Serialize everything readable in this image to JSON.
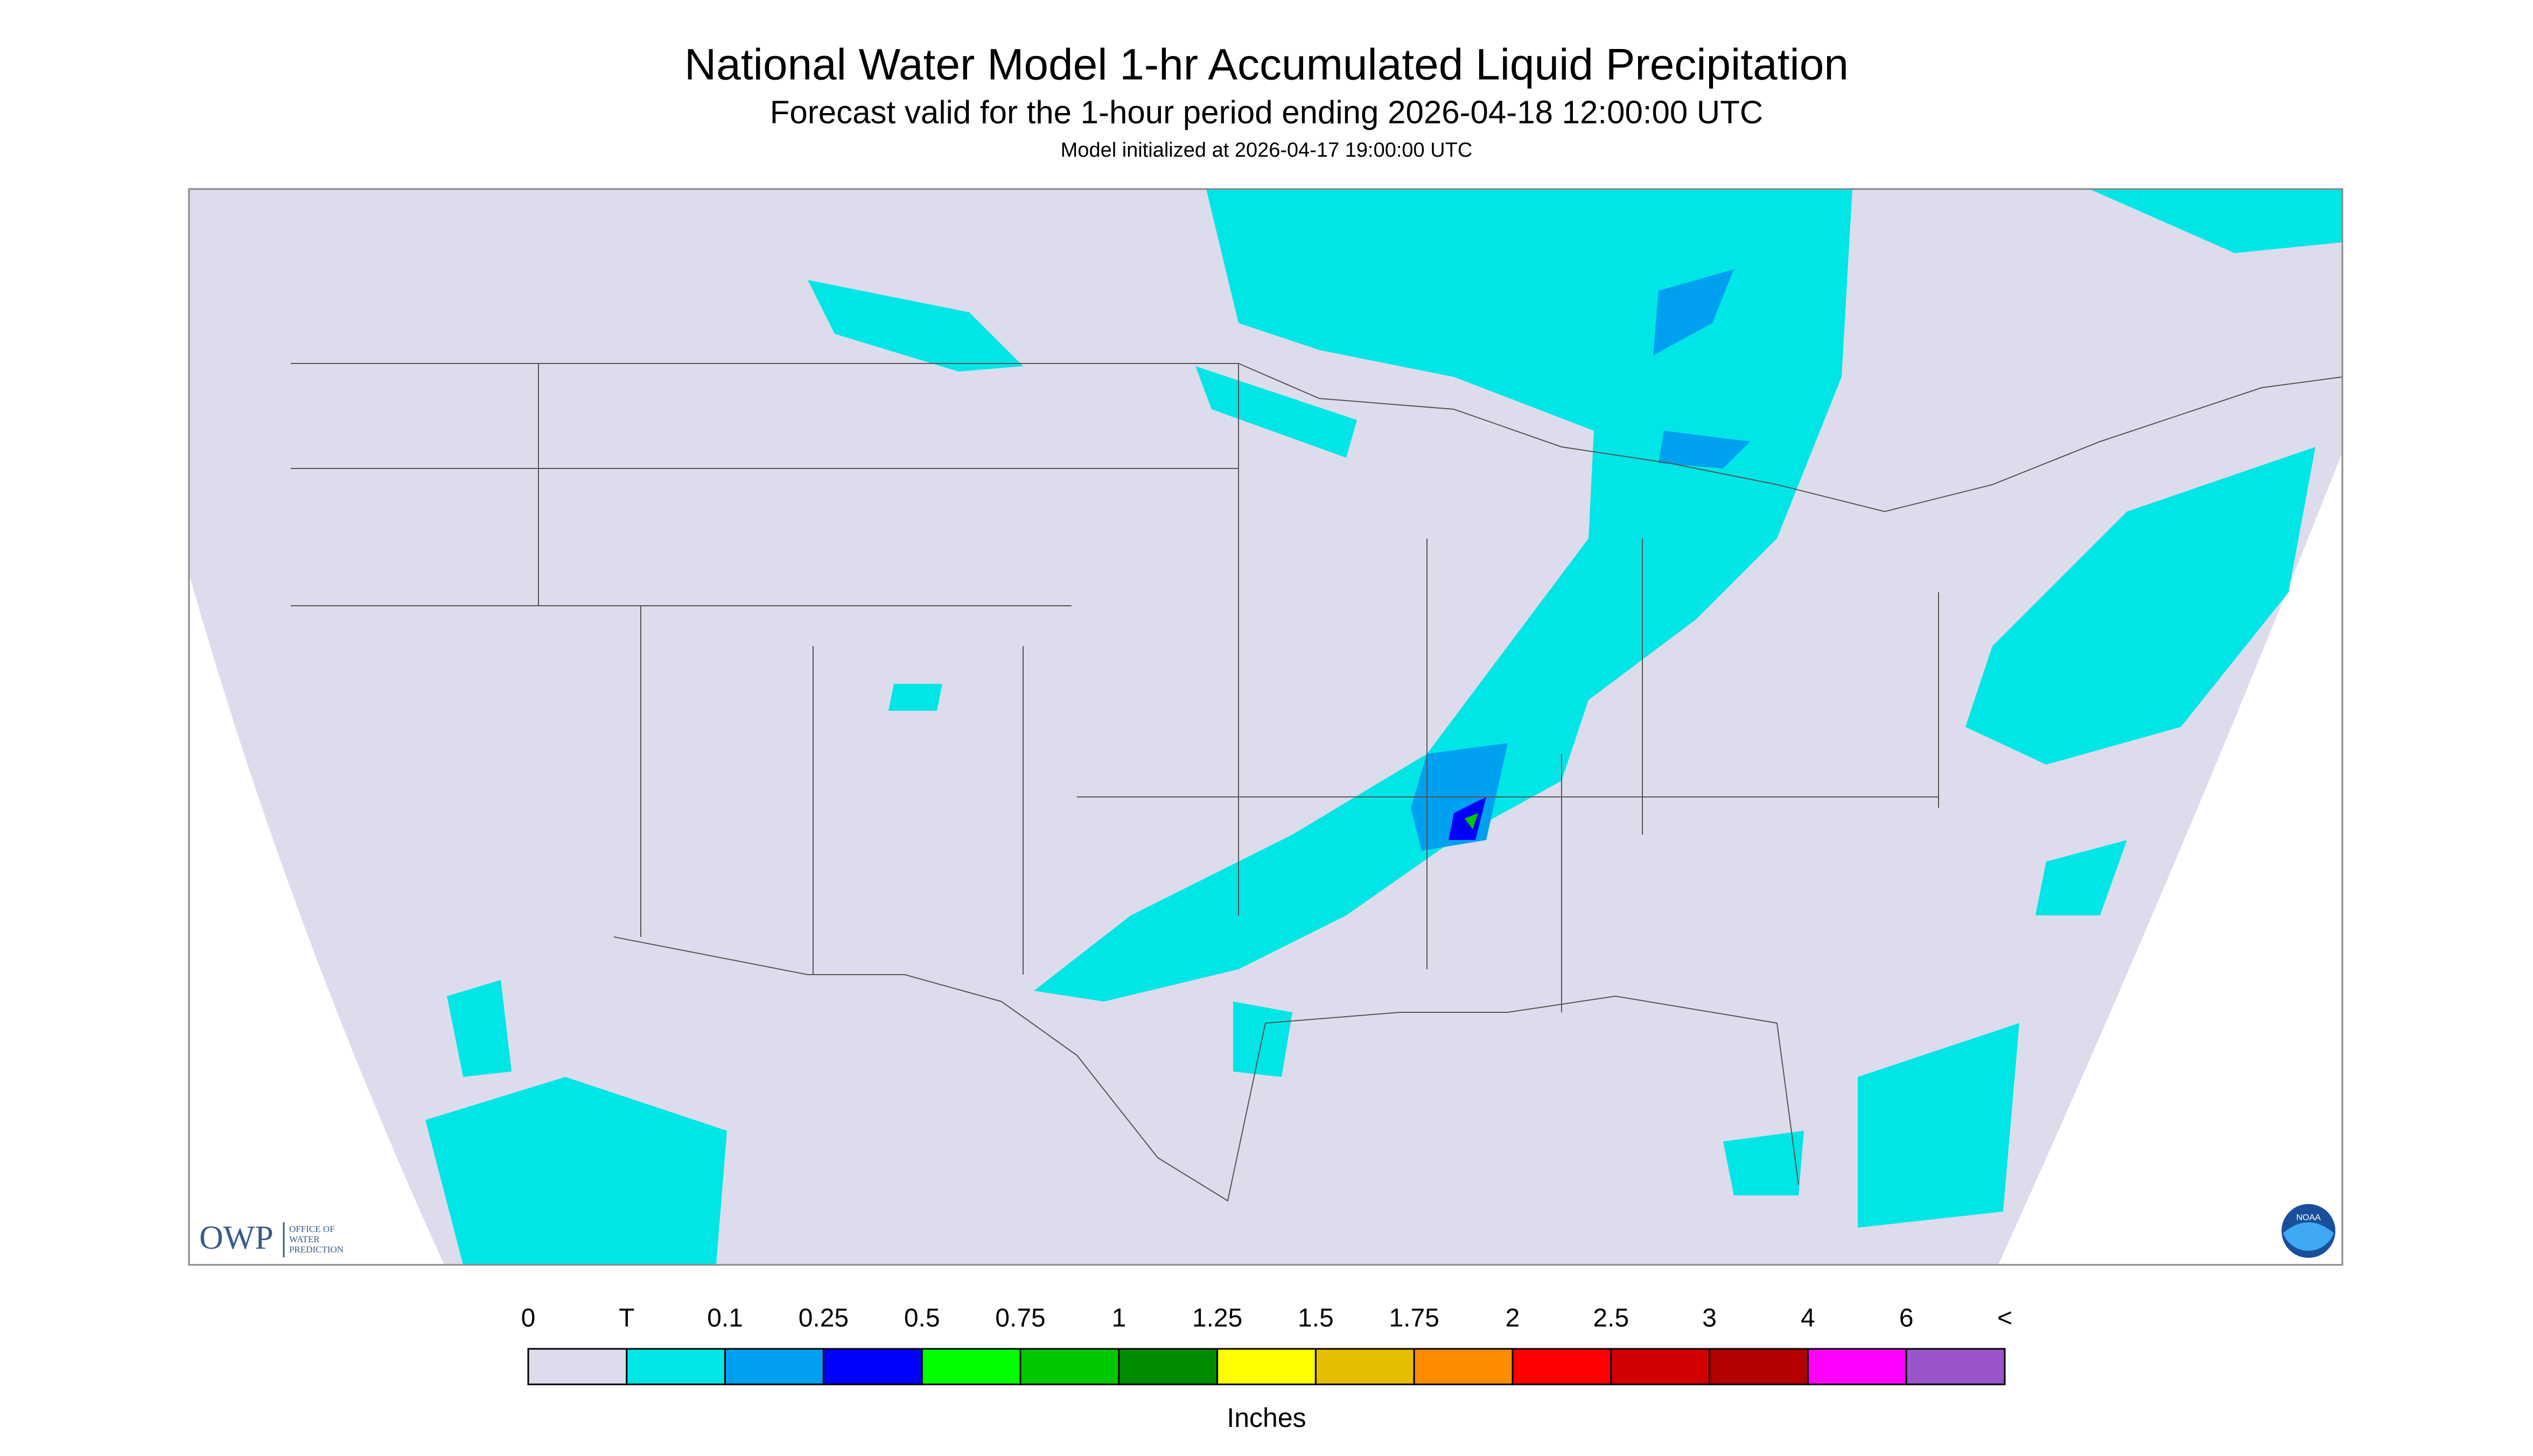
{
  "header": {
    "title": "National Water Model 1-hr Accumulated Liquid Precipitation",
    "subtitle": "Forecast valid for the 1-hour period ending 2026-04-18 12:00:00 UTC",
    "initialized": "Model initialized at 2026-04-17 19:00:00 UTC"
  },
  "legend": {
    "labels": [
      "0",
      "T",
      "0.1",
      "0.25",
      "0.5",
      "0.75",
      "1",
      "1.25",
      "1.5",
      "1.75",
      "2",
      "2.5",
      "3",
      "4",
      "6",
      "<"
    ],
    "colors": [
      "#dcdcec",
      "#00e6e6",
      "#00a0f0",
      "#0000ff",
      "#00ff00",
      "#00c800",
      "#008c00",
      "#ffff00",
      "#e6be00",
      "#ff8c00",
      "#ff0000",
      "#d20000",
      "#b40000",
      "#ff00ff",
      "#9955c9"
    ],
    "units": "Inches"
  },
  "logos": {
    "owp": "OWP",
    "owp_lines": [
      "OFFICE OF",
      "WATER",
      "PREDICTION"
    ],
    "noaa": "NOAA"
  }
}
